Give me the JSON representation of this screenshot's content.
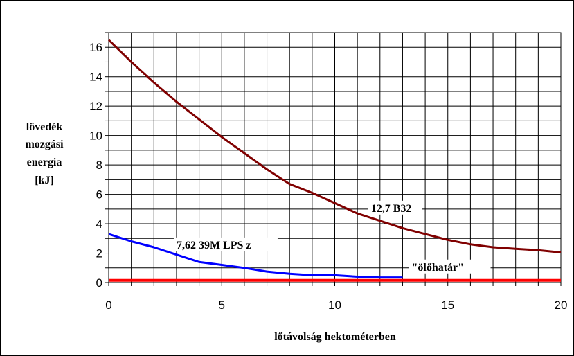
{
  "chart_data": {
    "type": "line",
    "title": "",
    "xlabel": "lőtávolság hektométerben",
    "ylabel_lines": [
      "lövedék",
      "mozgási",
      "energia",
      "[kJ]"
    ],
    "xlim": [
      0,
      20
    ],
    "ylim": [
      0,
      17
    ],
    "x_ticks": [
      0,
      5,
      10,
      15,
      20
    ],
    "y_ticks": [
      0,
      2,
      4,
      6,
      8,
      10,
      12,
      14,
      16
    ],
    "grid": true,
    "legend": "none",
    "series": [
      {
        "name": "12,7 B32",
        "color": "#800000",
        "x": [
          0,
          1,
          2,
          3,
          4,
          5,
          6,
          7,
          8,
          9,
          10,
          11,
          12,
          13,
          14,
          15,
          16,
          17,
          18,
          19,
          20
        ],
        "y": [
          16.5,
          15.0,
          13.6,
          12.3,
          11.1,
          9.9,
          8.8,
          7.7,
          6.7,
          6.1,
          5.4,
          4.7,
          4.2,
          3.7,
          3.3,
          2.9,
          2.6,
          2.4,
          2.3,
          2.2,
          2.05
        ]
      },
      {
        "name": "7,62 39M LPS z",
        "color": "#0000ff",
        "x": [
          0,
          1,
          2,
          3,
          4,
          5,
          6,
          7,
          8,
          9,
          10,
          11,
          12,
          13
        ],
        "y": [
          3.3,
          2.8,
          2.4,
          1.9,
          1.4,
          1.2,
          1.0,
          0.75,
          0.6,
          0.5,
          0.5,
          0.4,
          0.35,
          0.35
        ]
      },
      {
        "name": "\"ölőhatár\"",
        "color": "#ff0000",
        "x": [
          0,
          20
        ],
        "y": [
          0.15,
          0.15
        ]
      }
    ]
  }
}
